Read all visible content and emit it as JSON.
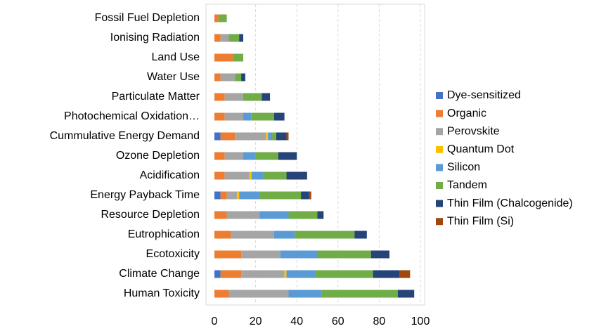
{
  "chart_data": {
    "type": "stacked-bar-horizontal",
    "categories": [
      "Fossil Fuel Depletion",
      "Ionising Radiation",
      "Land Use",
      "Water Use",
      "Particulate Matter",
      "Photochemical Oxidation…",
      "Cummulative Energy Demand",
      "Ozone Depletion",
      "Acidification",
      "Energy Payback Time",
      "Resource Depletion",
      "Eutrophication",
      "Ecotoxicity",
      "Climate Change",
      "Human Toxicity"
    ],
    "series": [
      {
        "name": "Dye-sensitized",
        "color": "#4472c4",
        "values": [
          0,
          0,
          0,
          0,
          0,
          0,
          3,
          0,
          0,
          3,
          0,
          0,
          0,
          3,
          0
        ]
      },
      {
        "name": "Organic",
        "color": "#ed7d31",
        "values": [
          2,
          3,
          9,
          3,
          5,
          5,
          7,
          5,
          5,
          3,
          6,
          8,
          13,
          10,
          7
        ]
      },
      {
        "name": "Perovskite",
        "color": "#a5a5a5",
        "values": [
          0,
          4,
          0,
          7,
          9,
          9,
          15,
          9,
          12,
          5,
          16,
          21,
          19,
          21,
          29
        ]
      },
      {
        "name": "Quantum Dot",
        "color": "#ffc000",
        "values": [
          0,
          0,
          0,
          0,
          0,
          0,
          1,
          0,
          1,
          1,
          0,
          0,
          0,
          1,
          0
        ]
      },
      {
        "name": "Silicon",
        "color": "#5b9bd5",
        "values": [
          0,
          0,
          0,
          0,
          0,
          4,
          2,
          6,
          6,
          10,
          14,
          10,
          18,
          14,
          16
        ]
      },
      {
        "name": "Tandem",
        "color": "#70ad47",
        "values": [
          4,
          5,
          5,
          3,
          9,
          11,
          2,
          11,
          11,
          20,
          14,
          29,
          26,
          28,
          37
        ]
      },
      {
        "name": "Thin Film (Chalcogenide)",
        "color": "#264478",
        "values": [
          0,
          2,
          0,
          2,
          4,
          5,
          5,
          9,
          10,
          4,
          3,
          6,
          9,
          13,
          8
        ]
      },
      {
        "name": "Thin Film (Si)",
        "color": "#9e480e",
        "values": [
          0,
          0,
          0,
          0,
          0,
          0,
          1,
          0,
          0,
          1,
          0,
          0,
          0,
          5,
          0
        ]
      }
    ],
    "xlim": [
      0,
      100
    ],
    "xticks": [
      0,
      20,
      40,
      60,
      80,
      100
    ],
    "grid": true,
    "legend": "right"
  }
}
